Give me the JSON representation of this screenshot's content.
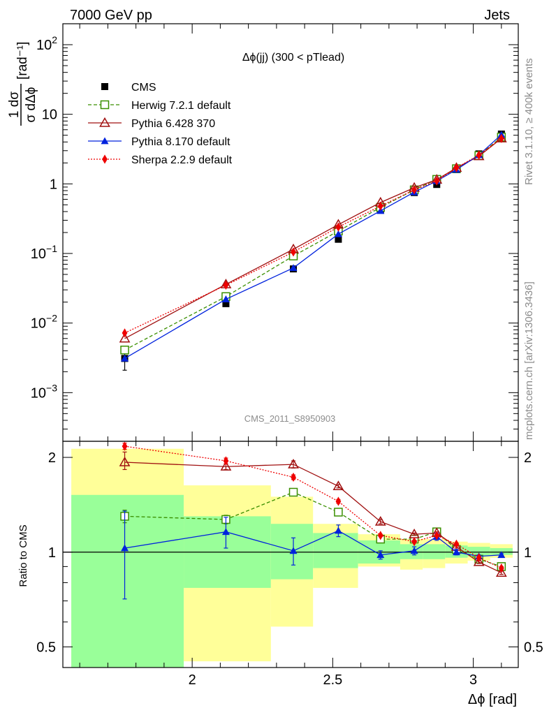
{
  "header": {
    "left": "7000 GeV pp",
    "right": "Jets"
  },
  "side": {
    "top": "Rivet 3.1.10, ≥ 400k events",
    "bottom": "mcplots.cern.ch [arXiv:1306.3436]"
  },
  "watermark": "CMS_2011_S8950903",
  "main_title": "Δϕ(jj) (300 < pTlead)",
  "ylabel_main": {
    "num": "1 dσ",
    "den": "σ dΔϕ",
    "unit": "[rad⁻¹]"
  },
  "ylabel_ratio": "Ratio to CMS",
  "xlabel": "Δϕ [rad]",
  "colors": {
    "data": "#000000",
    "herwig": "#3a8f00",
    "pythia6": "#a01010",
    "pythia8": "#0022dd",
    "sherpa": "#ee0000",
    "band_inner": "#99ff99",
    "band_outer": "#ffff99"
  },
  "chart_data": [
    {
      "type": "line",
      "yscale": "log",
      "xlim": [
        1.54,
        3.16
      ],
      "ylim": [
        0.0002,
        200
      ],
      "yticks": [
        {
          "value": 0.001,
          "base": "10",
          "exp": "−3"
        },
        {
          "value": 0.01,
          "base": "10",
          "exp": "−2"
        },
        {
          "value": 0.1,
          "base": "10",
          "exp": "−1"
        },
        {
          "value": 1,
          "base": "1",
          "exp": ""
        },
        {
          "value": 10,
          "base": "10",
          "exp": ""
        },
        {
          "value": 100,
          "base": "10",
          "exp": "2"
        }
      ],
      "x": [
        1.76,
        2.12,
        2.36,
        2.52,
        2.67,
        2.79,
        2.87,
        2.94,
        3.02,
        3.1
      ],
      "series": [
        {
          "key": "cms",
          "name": "CMS",
          "values": [
            0.0031,
            0.019,
            0.06,
            0.16,
            0.42,
            0.75,
            0.98,
            1.6,
            2.7,
            5.2
          ],
          "err_lo": [
            0.001,
            0,
            0,
            0,
            0,
            0,
            0,
            0,
            0,
            0
          ],
          "err_hi": [
            0.0012,
            0,
            0,
            0,
            0,
            0,
            0,
            0,
            0,
            0
          ]
        },
        {
          "key": "herwig",
          "name": "Herwig 7.2.1 default",
          "values": [
            0.0041,
            0.024,
            0.092,
            0.21,
            0.46,
            0.82,
            1.16,
            1.65,
            2.55,
            4.7
          ]
        },
        {
          "key": "pythia6",
          "name": "Pythia 6.428 370",
          "values": [
            0.006,
            0.036,
            0.115,
            0.26,
            0.54,
            0.88,
            1.15,
            1.7,
            2.5,
            4.5
          ]
        },
        {
          "key": "pythia8",
          "name": "Pythia 8.170 default",
          "values": [
            0.0031,
            0.022,
            0.062,
            0.19,
            0.41,
            0.76,
            1.1,
            1.6,
            2.6,
            5.1
          ]
        },
        {
          "key": "sherpa",
          "name": "Sherpa 2.2.9 default",
          "values": [
            0.0072,
            0.035,
            0.105,
            0.24,
            0.48,
            0.82,
            1.1,
            1.7,
            2.6,
            4.5
          ]
        }
      ]
    },
    {
      "type": "line",
      "xlim": [
        1.54,
        3.16
      ],
      "ylim": [
        0.43,
        2.25
      ],
      "xticks": [
        "2",
        "2.5",
        "3"
      ],
      "xtick_values": [
        2,
        2.5,
        3
      ],
      "yticks": [
        "0.5",
        "1",
        "2"
      ],
      "ytick_values": [
        0.5,
        1,
        2
      ],
      "x": [
        1.76,
        2.12,
        2.36,
        2.52,
        2.67,
        2.79,
        2.87,
        2.94,
        3.02,
        3.1
      ],
      "bands": {
        "bin_edges": [
          1.57,
          1.97,
          2.28,
          2.43,
          2.59,
          2.74,
          2.82,
          2.9,
          2.98,
          3.06,
          3.14
        ],
        "inner_lo": [
          0.36,
          0.77,
          0.82,
          0.89,
          0.92,
          0.95,
          0.95,
          0.96,
          0.97,
          0.98
        ],
        "inner_hi": [
          1.52,
          1.3,
          1.23,
          1.15,
          1.09,
          1.06,
          1.06,
          1.05,
          1.04,
          1.03
        ],
        "outer_lo": [
          0.34,
          0.45,
          0.58,
          0.77,
          0.9,
          0.88,
          0.89,
          0.92,
          0.94,
          0.96
        ],
        "outer_hi": [
          2.13,
          1.63,
          1.5,
          1.23,
          1.14,
          1.1,
          1.1,
          1.08,
          1.07,
          1.06
        ]
      },
      "series": [
        {
          "key": "herwig",
          "name": "Herwig 7.2.1 default",
          "values": [
            1.3,
            1.27,
            1.55,
            1.34,
            1.1,
            1.1,
            1.16,
            1.02,
            0.95,
            0.9
          ],
          "err_lo": [
            0.06,
            0.04,
            0.03,
            0.02,
            0.01,
            0.01,
            0.01,
            0.01,
            0.01,
            0.01
          ],
          "err_hi": [
            0.06,
            0.04,
            0.03,
            0.02,
            0.01,
            0.01,
            0.01,
            0.01,
            0.01,
            0.01
          ]
        },
        {
          "key": "pythia6",
          "name": "Pythia 6.428 370",
          "values": [
            1.93,
            1.87,
            1.9,
            1.62,
            1.25,
            1.14,
            1.15,
            1.04,
            0.93,
            0.86
          ],
          "err_lo": [
            0.1,
            0.04,
            0.05,
            0.02,
            0.02,
            0.01,
            0.01,
            0.01,
            0.01,
            0.01
          ],
          "err_hi": [
            0.15,
            0.04,
            0.05,
            0.02,
            0.02,
            0.01,
            0.01,
            0.01,
            0.01,
            0.01
          ]
        },
        {
          "key": "pythia8",
          "name": "Pythia 8.170 default",
          "values": [
            1.03,
            1.16,
            1.01,
            1.17,
            0.98,
            1.01,
            1.12,
            1.0,
            0.97,
            0.98
          ],
          "err_lo": [
            0.32,
            0.13,
            0.1,
            0.05,
            0.03,
            0.03,
            0.03,
            0.02,
            0.01,
            0.01
          ],
          "err_hi": [
            0.32,
            0.13,
            0.1,
            0.05,
            0.03,
            0.03,
            0.03,
            0.02,
            0.01,
            0.01
          ]
        },
        {
          "key": "sherpa",
          "name": "Sherpa 2.2.9 default",
          "values": [
            2.17,
            1.95,
            1.73,
            1.45,
            1.13,
            1.08,
            1.13,
            1.06,
            0.96,
            0.89
          ],
          "err_lo": [
            0.05,
            0.04,
            0.03,
            0.02,
            0.01,
            0.01,
            0.01,
            0.01,
            0.01,
            0.01
          ],
          "err_hi": [
            0.05,
            0.04,
            0.03,
            0.02,
            0.01,
            0.01,
            0.01,
            0.01,
            0.01,
            0.01
          ]
        }
      ]
    }
  ]
}
